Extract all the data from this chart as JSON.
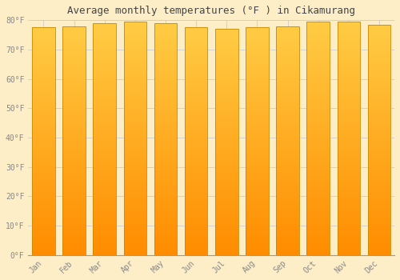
{
  "title": "Average monthly temperatures (°F ) in Cikamurang",
  "months": [
    "Jan",
    "Feb",
    "Mar",
    "Apr",
    "May",
    "Jun",
    "Jul",
    "Aug",
    "Sep",
    "Oct",
    "Nov",
    "Dec"
  ],
  "values": [
    77.5,
    78.0,
    79.0,
    79.5,
    79.0,
    77.5,
    77.0,
    77.5,
    78.0,
    79.5,
    79.5,
    78.5
  ],
  "bar_color": "#FFAA00",
  "bar_color_bottom": "#FF8C00",
  "bar_color_top": "#FFCC44",
  "bar_edge_color": "#CC8800",
  "ylim": [
    0,
    80
  ],
  "ytick_values": [
    0,
    10,
    20,
    30,
    40,
    50,
    60,
    70,
    80
  ],
  "ytick_labels": [
    "0°F",
    "10°F",
    "20°F",
    "30°F",
    "40°F",
    "50°F",
    "60°F",
    "70°F",
    "80°F"
  ],
  "bg_color": "#FDEEC8",
  "grid_color": "#CCCCCC",
  "title_fontsize": 9,
  "tick_fontsize": 7,
  "font_family": "monospace"
}
